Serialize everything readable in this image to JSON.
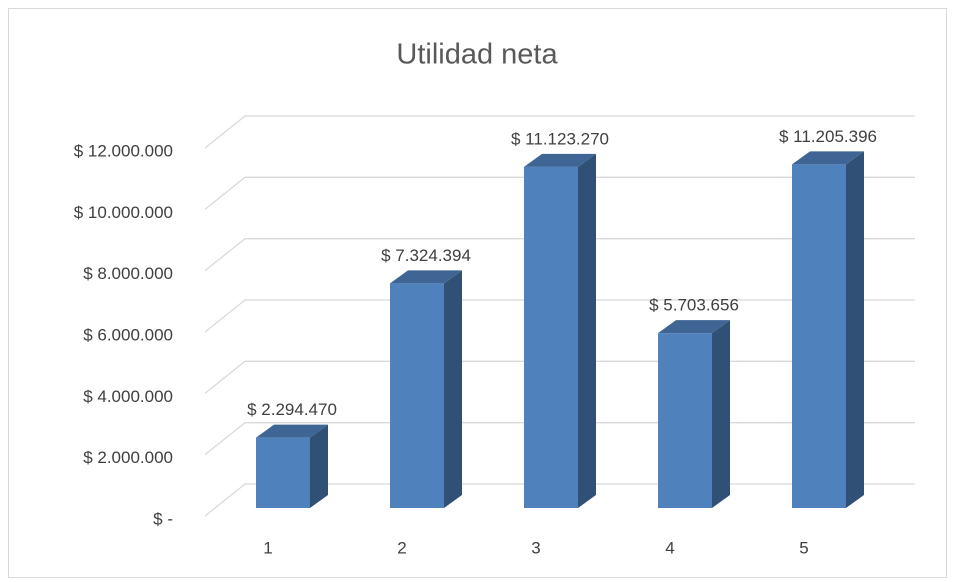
{
  "chart_data": {
    "type": "bar3d",
    "title": "Utilidad neta",
    "categories": [
      "1",
      "2",
      "3",
      "4",
      "5"
    ],
    "values": [
      2294470,
      7324394,
      11123270,
      5703656,
      11205396
    ],
    "value_labels": [
      "$ 2.294.470",
      "$ 7.324.394",
      "$ 11.123.270",
      "$ 5.703.656",
      "$ 11.205.396"
    ],
    "color": "#4f81bd",
    "ylim": [
      0,
      12000000
    ],
    "yticks": [
      {
        "value": 0,
        "label": "$ -"
      },
      {
        "value": 2000000,
        "label": "$ 2.000.000"
      },
      {
        "value": 4000000,
        "label": "$ 4.000.000"
      },
      {
        "value": 6000000,
        "label": "$ 6.000.000"
      },
      {
        "value": 8000000,
        "label": "$ 8.000.000"
      },
      {
        "value": 10000000,
        "label": "$ 10.000.000"
      },
      {
        "value": 12000000,
        "label": "$ 12.000.000"
      }
    ],
    "grid": true
  }
}
